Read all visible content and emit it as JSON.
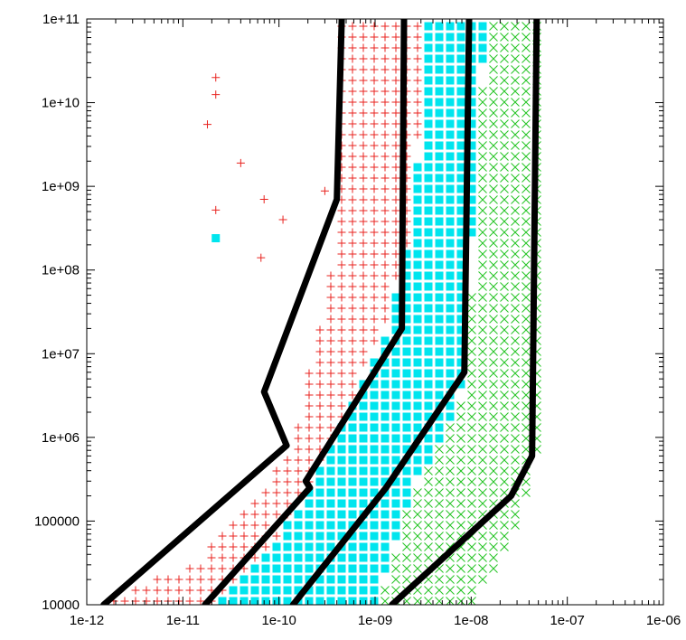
{
  "chart_data": {
    "type": "scatter",
    "title": "",
    "xlabel": "",
    "ylabel": "",
    "x_scale": "log",
    "y_scale": "log",
    "xlim": [
      1e-12,
      1e-06
    ],
    "ylim": [
      10000,
      100000000000
    ],
    "grid": false,
    "legend": "none",
    "x_ticks": [
      "1e-12",
      "1e-11",
      "1e-10",
      "1e-09",
      "1e-08",
      "1e-07",
      "1e-06"
    ],
    "y_ticks": [
      "10000",
      "100000",
      "1e+06",
      "1e+07",
      "1e+08",
      "1e+09",
      "1e+10",
      "1e+11"
    ],
    "colors": {
      "red_plus": "#e8231f",
      "cyan_square": "#00e5ee",
      "green_x": "#22c322",
      "boundary": "#000000"
    },
    "regions": {
      "red_plus_band": {
        "marker": "plus",
        "lower_edge": [
          [
            1.5e-12,
            10000
          ],
          [
            1.5e-11,
            35000
          ],
          [
            8e-11,
            300000
          ],
          [
            1.4e-10,
            900000
          ],
          [
            2e-10,
            5000000
          ],
          [
            3.5e-10,
            100000000
          ],
          [
            3.9e-10,
            1000000000
          ],
          [
            4e-10,
            100000000000
          ]
        ],
        "upper_edge": [
          [
            2e-11,
            10000
          ],
          [
            9e-11,
            50000
          ],
          [
            2.2e-10,
            300000
          ],
          [
            6e-10,
            3000000
          ],
          [
            1.3e-09,
            20000000
          ],
          [
            2.5e-09,
            300000000
          ],
          [
            3.5e-09,
            100000000000
          ]
        ],
        "outliers": [
          [
            2.2e-11,
            20000000000
          ],
          [
            2.2e-11,
            12500000000
          ],
          [
            1.8e-11,
            5500000000
          ],
          [
            4e-11,
            1900000000
          ],
          [
            7e-11,
            700000000
          ],
          [
            3e-10,
            880000000
          ],
          [
            2.2e-11,
            520000000
          ],
          [
            1.1e-10,
            400000000
          ],
          [
            6.5e-11,
            140000000
          ]
        ]
      },
      "cyan_square_band": {
        "marker": "square",
        "lower_edge": [
          [
            2e-11,
            10000
          ],
          [
            9e-11,
            50000
          ],
          [
            2.2e-10,
            300000
          ],
          [
            6e-10,
            3000000
          ],
          [
            1.3e-09,
            20000000
          ],
          [
            2.5e-09,
            300000000
          ],
          [
            3.5e-09,
            100000000000
          ]
        ],
        "upper_edge": [
          [
            1.1e-09,
            10000
          ],
          [
            2.4e-09,
            200000
          ],
          [
            6.2e-09,
            1500000
          ],
          [
            9e-09,
            5000000
          ],
          [
            1e-08,
            30000000
          ],
          [
            1.1e-08,
            1000000000
          ],
          [
            1.5e-08,
            100000000000
          ]
        ],
        "outliers": [
          [
            2.2e-11,
            240000000
          ]
        ]
      },
      "green_x_band": {
        "marker": "x",
        "lower_edge": [
          [
            1.1e-09,
            10000
          ],
          [
            2.4e-09,
            200000
          ],
          [
            6.2e-09,
            1500000
          ],
          [
            9e-09,
            5000000
          ],
          [
            1e-08,
            30000000
          ],
          [
            1.1e-08,
            1000000000
          ],
          [
            1.5e-08,
            100000000000
          ]
        ],
        "upper_edge": [
          [
            1.1e-08,
            10000
          ],
          [
            3e-08,
            70000
          ],
          [
            5.5e-08,
            800000
          ],
          [
            5.8e-08,
            10000000
          ],
          [
            6e-08,
            1000000000
          ],
          [
            6.5e-08,
            100000000000
          ]
        ],
        "outliers": []
      }
    },
    "series": [
      {
        "points": [
          [
            1.5e-12,
            10000
          ],
          [
            1.2e-10,
            800000
          ],
          [
            7e-11,
            3500000
          ],
          [
            4e-10,
            700000000
          ],
          [
            4.5e-10,
            100000000000
          ]
        ]
      },
      {
        "points": [
          [
            1.7e-11,
            10000
          ],
          [
            2.1e-10,
            250000
          ],
          [
            1.9e-10,
            300000
          ],
          [
            1.9e-09,
            20000000
          ],
          [
            2e-09,
            100000000000
          ]
        ]
      },
      {
        "points": [
          [
            1.4e-10,
            10000
          ],
          [
            1.3e-09,
            250000
          ],
          [
            8.5e-09,
            6000000
          ],
          [
            9.5e-09,
            100000000000
          ]
        ]
      },
      {
        "points": [
          [
            1.5e-09,
            10000
          ],
          [
            2.6e-08,
            200000
          ],
          [
            4.3e-08,
            600000
          ],
          [
            4.8e-08,
            100000000000
          ]
        ]
      }
    ]
  }
}
